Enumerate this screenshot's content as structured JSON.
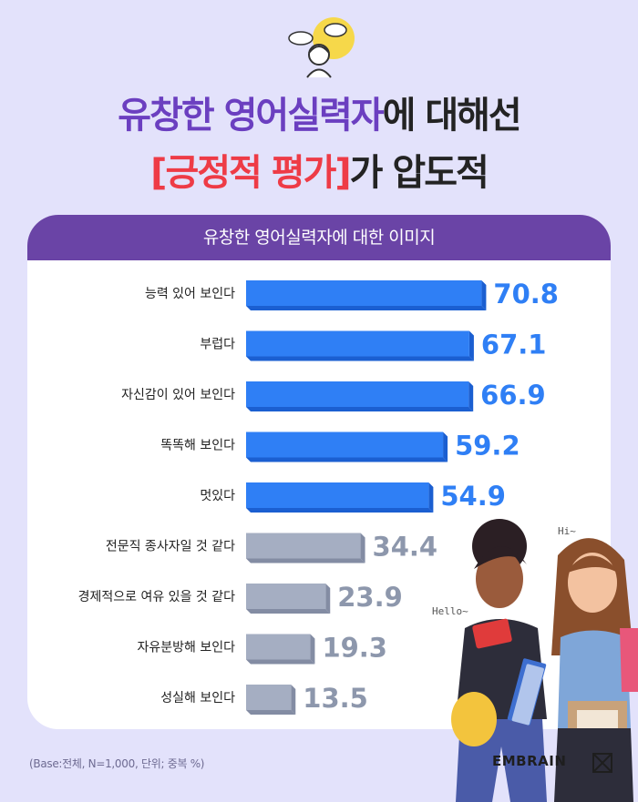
{
  "heading": {
    "line1_purple": "유창한 영어실력자",
    "line1_dark": "에 대해선",
    "line2_red": "[긍정적 평가]",
    "line2_dark": "가 압도적"
  },
  "card": {
    "header": "유창한 영어실력자에 대한 이미지"
  },
  "footnote": "(Base:전체, N=1,000, 단위; 중복 %)",
  "brand": {
    "name": "EMBRAIN"
  },
  "illustration": {
    "hello": "Hello~",
    "hi": "Hi~",
    "icon": "person-speech-bubbles-icon"
  },
  "colors": {
    "highlight": "#2f7ff5",
    "muted": "#a5aec2",
    "header": "#6a44a6",
    "title_purple": "#6b3fc0",
    "title_red": "#ee3b46"
  },
  "chart_data": {
    "type": "bar",
    "orientation": "horizontal",
    "title": "유창한 영어실력자에 대한 이미지",
    "categories": [
      "능력 있어 보인다",
      "부럽다",
      "자신감이 있어 보인다",
      "똑똑해 보인다",
      "멋있다",
      "전문직 종사자일 것 같다",
      "경제적으로 여유 있을 것 같다",
      "자유분방해 보인다",
      "성실해 보인다"
    ],
    "values": [
      70.8,
      67.1,
      66.9,
      59.2,
      54.9,
      34.4,
      23.9,
      19.3,
      13.5
    ],
    "value_labels": [
      "70.8",
      "67.1",
      "66.9",
      "59.2",
      "54.9",
      "34.4",
      "23.9",
      "19.3",
      "13.5"
    ],
    "highlighted_count": 5,
    "xlim": [
      0,
      100
    ],
    "grid": false,
    "legend": "none"
  }
}
